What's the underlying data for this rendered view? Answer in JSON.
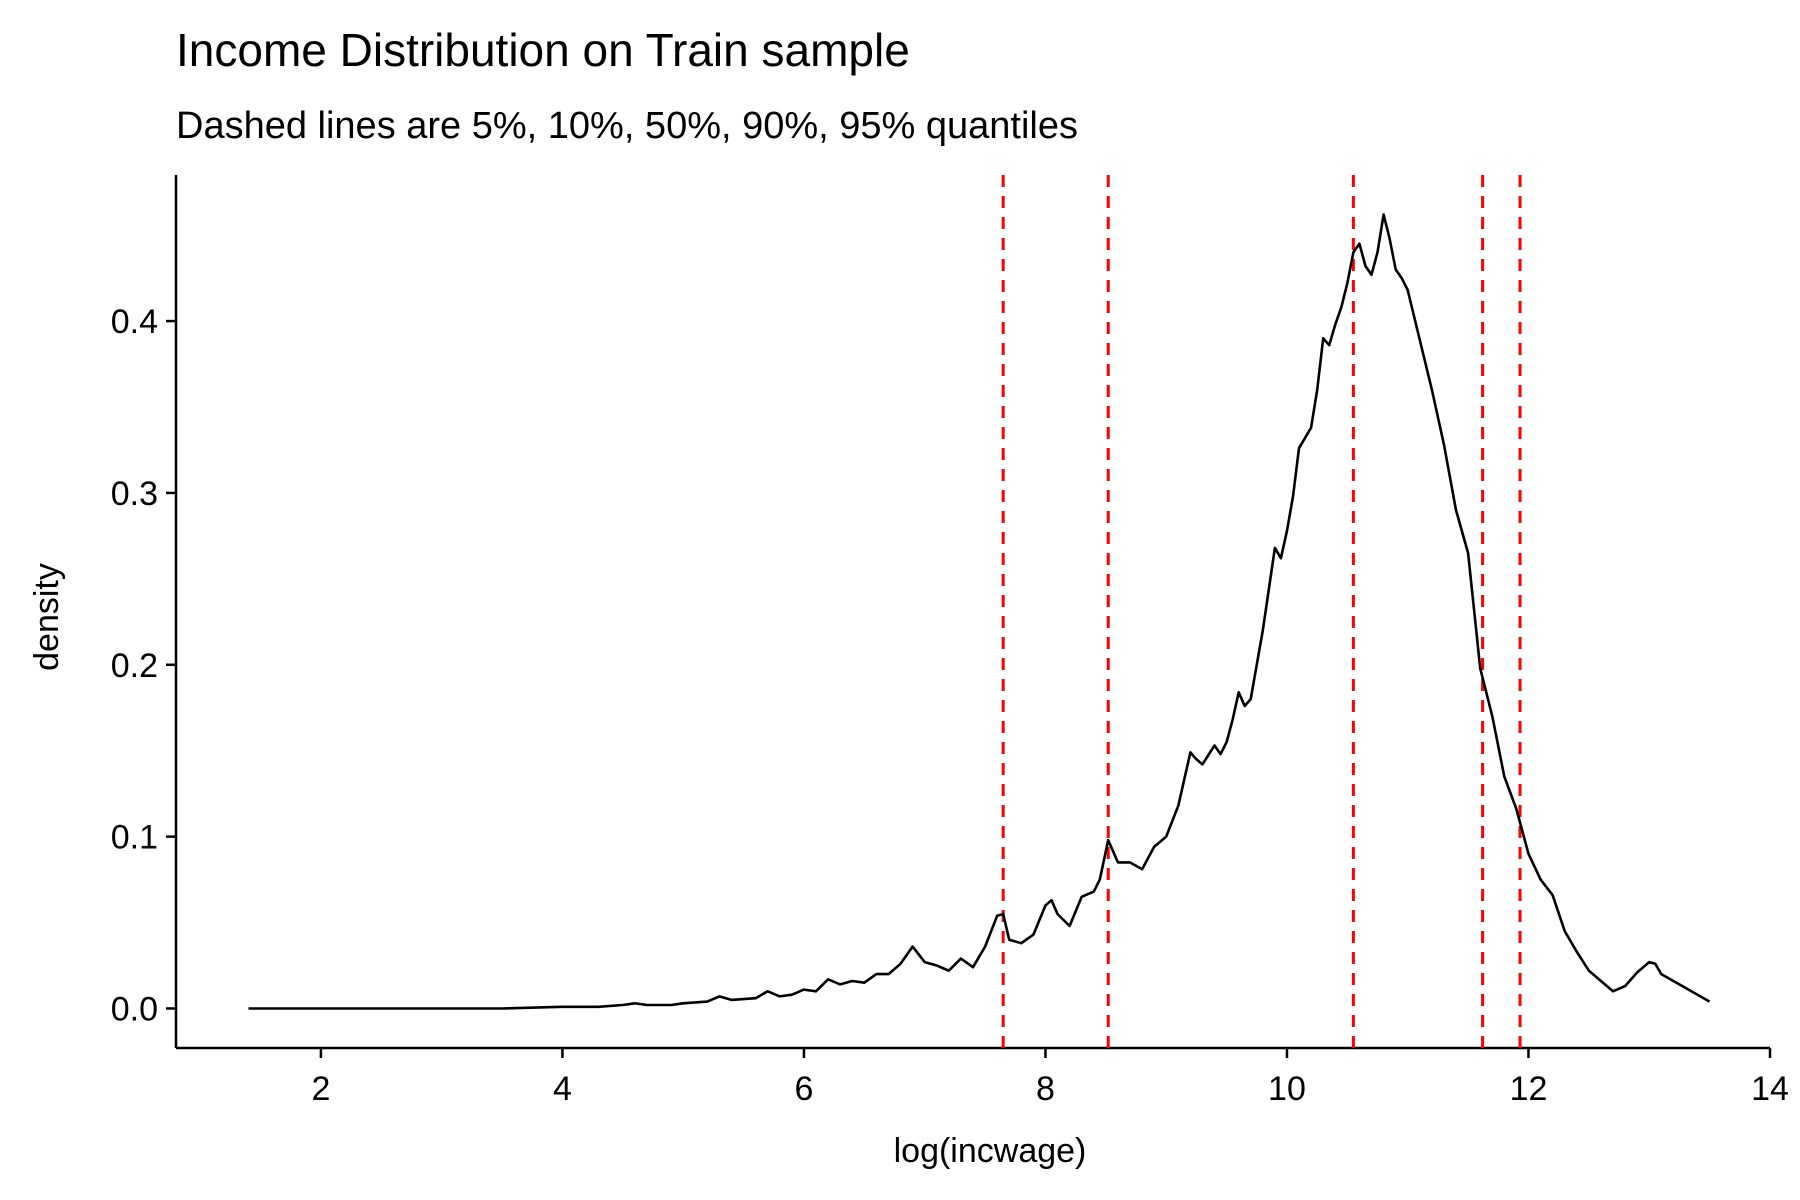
{
  "chart_data": {
    "type": "line",
    "title": "Income Distribution on Train sample",
    "subtitle": "Dashed lines are 5%, 10%, 50%, 90%, 95% quantiles",
    "xlabel": "log(incwage)",
    "ylabel": "density",
    "xlim": [
      0.8,
      14.0
    ],
    "ylim": [
      -0.023,
      0.485
    ],
    "x_ticks": [
      2,
      4,
      6,
      8,
      10,
      12,
      14
    ],
    "y_ticks": [
      0.0,
      0.1,
      0.2,
      0.3,
      0.4
    ],
    "y_tick_labels": [
      "0.0",
      "0.1",
      "0.2",
      "0.3",
      "0.4"
    ],
    "grid": false,
    "line_color": "#000000",
    "quantile_color": "#ff0000",
    "quantiles": [
      7.65,
      8.52,
      10.55,
      11.62,
      11.93
    ],
    "series": [
      {
        "x": [
          1.4,
          2.0,
          2.5,
          3.0,
          3.5,
          4.0,
          4.3,
          4.5,
          4.6,
          4.7,
          4.9,
          5.0,
          5.2,
          5.3,
          5.4,
          5.6,
          5.7,
          5.8,
          5.9,
          6.0,
          6.1,
          6.2,
          6.3,
          6.4,
          6.5,
          6.6,
          6.7,
          6.8,
          6.9,
          7.0,
          7.1,
          7.2,
          7.3,
          7.4,
          7.5,
          7.6,
          7.65,
          7.7,
          7.8,
          7.9,
          8.0,
          8.05,
          8.1,
          8.2,
          8.3,
          8.4,
          8.45,
          8.52,
          8.6,
          8.7,
          8.8,
          8.9,
          9.0,
          9.1,
          9.2,
          9.25,
          9.3,
          9.4,
          9.45,
          9.5,
          9.55,
          9.6,
          9.65,
          9.7,
          9.8,
          9.9,
          9.95,
          10.0,
          10.05,
          10.1,
          10.2,
          10.25,
          10.3,
          10.35,
          10.4,
          10.45,
          10.5,
          10.55,
          10.6,
          10.65,
          10.7,
          10.75,
          10.8,
          10.85,
          10.9,
          10.95,
          11.0,
          11.1,
          11.2,
          11.3,
          11.4,
          11.5,
          11.6,
          11.7,
          11.8,
          11.9,
          12.0,
          12.1,
          12.2,
          12.3,
          12.4,
          12.5,
          12.6,
          12.7,
          12.8,
          12.9,
          13.0,
          13.05,
          13.1,
          13.2,
          13.3,
          13.4,
          13.5
        ],
        "y": [
          0.0,
          0.0,
          0.0,
          0.0,
          0.0,
          0.001,
          0.001,
          0.002,
          0.003,
          0.002,
          0.002,
          0.003,
          0.004,
          0.007,
          0.005,
          0.006,
          0.01,
          0.007,
          0.008,
          0.011,
          0.01,
          0.017,
          0.014,
          0.016,
          0.015,
          0.02,
          0.02,
          0.026,
          0.036,
          0.027,
          0.025,
          0.022,
          0.029,
          0.024,
          0.036,
          0.054,
          0.055,
          0.04,
          0.038,
          0.043,
          0.06,
          0.063,
          0.055,
          0.048,
          0.065,
          0.068,
          0.075,
          0.098,
          0.085,
          0.085,
          0.081,
          0.094,
          0.1,
          0.118,
          0.149,
          0.145,
          0.142,
          0.153,
          0.148,
          0.155,
          0.168,
          0.184,
          0.176,
          0.18,
          0.22,
          0.268,
          0.262,
          0.278,
          0.298,
          0.326,
          0.338,
          0.36,
          0.39,
          0.386,
          0.398,
          0.408,
          0.422,
          0.44,
          0.445,
          0.432,
          0.427,
          0.44,
          0.462,
          0.448,
          0.43,
          0.425,
          0.418,
          0.389,
          0.36,
          0.328,
          0.29,
          0.265,
          0.198,
          0.17,
          0.135,
          0.116,
          0.09,
          0.075,
          0.066,
          0.045,
          0.033,
          0.022,
          0.016,
          0.01,
          0.013,
          0.021,
          0.027,
          0.026,
          0.02,
          0.016,
          0.012,
          0.008,
          0.004
        ]
      }
    ]
  }
}
